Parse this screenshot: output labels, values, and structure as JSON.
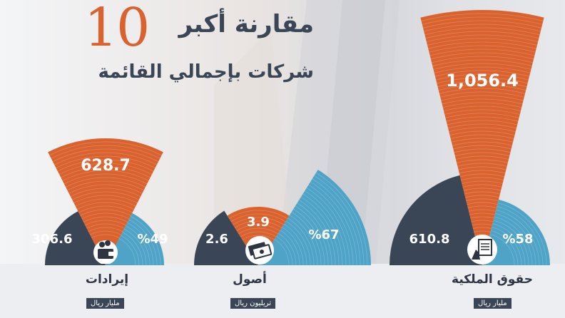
{
  "title": {
    "line1_text": "مقارنة أكبر",
    "line1_number": "10",
    "line2": "شركات بإجمالي القائمة"
  },
  "colors": {
    "orange": "#d9622e",
    "navy": "#3a4556",
    "teal": "#4fa3c7",
    "band": "#eceef1"
  },
  "groups": [
    {
      "label": "إيرادات",
      "unit": "مليار ريال",
      "icon": "wallet-money-icon"
    },
    {
      "label": "أصول",
      "unit": "تريليون ريال",
      "icon": "cash-stack-icon"
    },
    {
      "label": "حقوق الملكية",
      "unit": "مليار ريال",
      "icon": "hand-document-icon"
    }
  ],
  "chart_data": [
    {
      "type": "pie",
      "title": "إيرادات",
      "unit": "مليار ريال",
      "slices": [
        {
          "value": 306.6,
          "label": "306.6",
          "color": "#3a4556"
        },
        {
          "value": 628.7,
          "label": "628.7",
          "color": "#d9622e"
        },
        {
          "value": 49,
          "label": "%49",
          "color": "#4fa3c7"
        }
      ]
    },
    {
      "type": "pie",
      "title": "أصول",
      "unit": "تريليون ريال",
      "slices": [
        {
          "value": 2.6,
          "label": "2.6",
          "color": "#3a4556"
        },
        {
          "value": 3.9,
          "label": "3.9",
          "color": "#d9622e"
        },
        {
          "value": 67,
          "label": "%67",
          "color": "#4fa3c7"
        }
      ]
    },
    {
      "type": "pie",
      "title": "حقوق الملكية",
      "unit": "مليار ريال",
      "slices": [
        {
          "value": 610.8,
          "label": "610.8",
          "color": "#3a4556"
        },
        {
          "value": 1056.4,
          "label": "1,056.4",
          "color": "#d9622e"
        },
        {
          "value": 58,
          "label": "%58",
          "color": "#4fa3c7"
        }
      ]
    }
  ]
}
